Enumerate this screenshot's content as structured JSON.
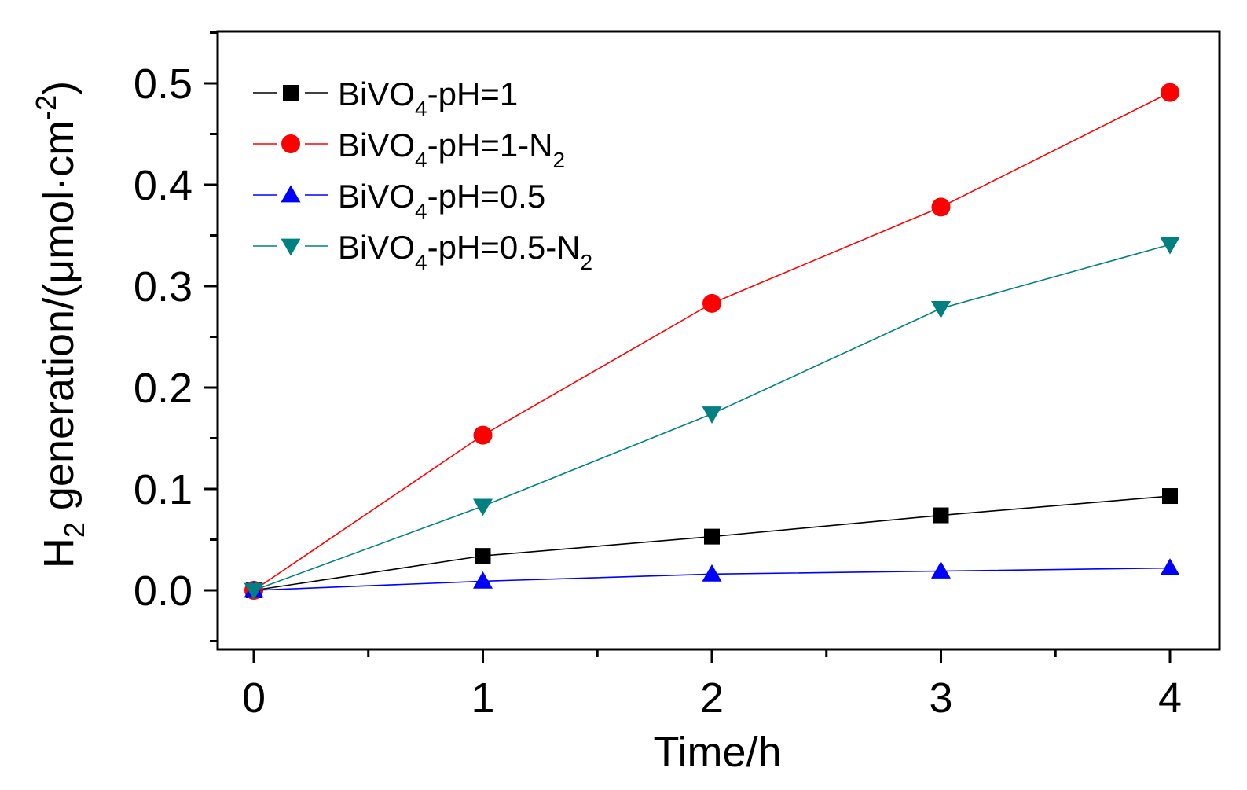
{
  "chart_data": {
    "type": "line",
    "title": "",
    "xlabel": "Time/h",
    "ylabel": {
      "main": "H",
      "sub": "2",
      "rest": " generation/(μmol·cm",
      "sup": "-2",
      "close": ")"
    },
    "xlim": [
      0,
      4
    ],
    "ylim": [
      -0.058,
      0.55
    ],
    "x_ticks": [
      "0",
      "1",
      "2",
      "3",
      "4"
    ],
    "y_ticks": [
      "0.0",
      "0.1",
      "0.2",
      "0.3",
      "0.4",
      "0.5"
    ],
    "grid": false,
    "legend_position": "top-left",
    "x": [
      0,
      1,
      2,
      3,
      4
    ],
    "series": [
      {
        "name": "BiVO4-pH=1",
        "label": {
          "a": "BiVO",
          "sub1": "4",
          "b": "-pH=1",
          "sub2": ""
        },
        "color": "#000000",
        "marker": "square",
        "values": [
          0.0,
          0.034,
          0.053,
          0.074,
          0.093
        ]
      },
      {
        "name": "BiVO4-pH=1-N2",
        "label": {
          "a": "BiVO",
          "sub1": "4",
          "b": "-pH=1-N",
          "sub2": "2"
        },
        "color": "#ff0000",
        "marker": "circle",
        "values": [
          0.0,
          0.153,
          0.283,
          0.378,
          0.491
        ]
      },
      {
        "name": "BiVO4-pH=0.5",
        "label": {
          "a": "BiVO",
          "sub1": "4",
          "b": "-pH=0.5",
          "sub2": ""
        },
        "color": "#0000ff",
        "marker": "triangle-up",
        "values": [
          0.0,
          0.009,
          0.016,
          0.019,
          0.022
        ]
      },
      {
        "name": "BiVO4-pH=0.5-N2",
        "label": {
          "a": "BiVO",
          "sub1": "4",
          "b": "-pH=0.5-N",
          "sub2": "2"
        },
        "color": "#008080",
        "marker": "triangle-down",
        "values": [
          0.0,
          0.083,
          0.174,
          0.278,
          0.341
        ]
      }
    ]
  }
}
